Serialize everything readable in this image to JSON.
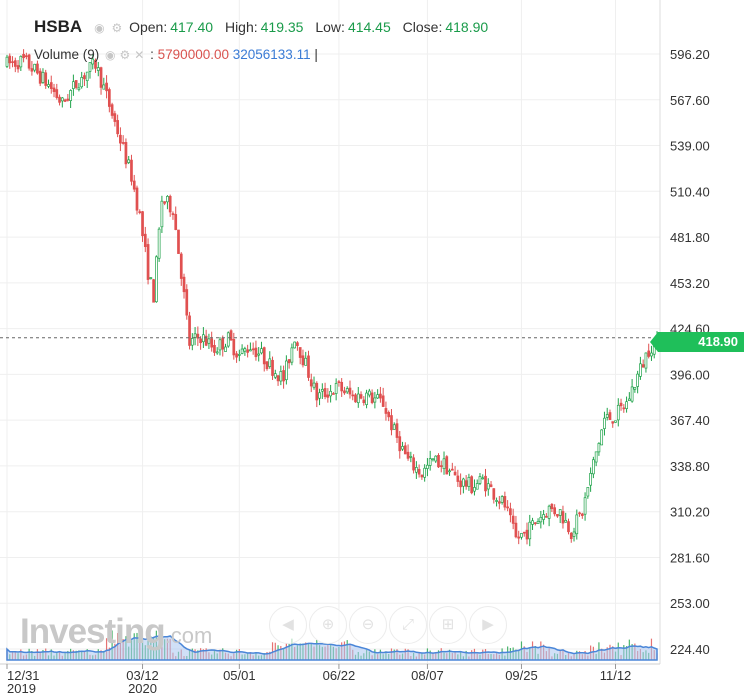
{
  "header": {
    "symbol": "HSBA",
    "open_label": "Open:",
    "open": "417.40",
    "high_label": "High:",
    "high": "419.35",
    "low_label": "Low:",
    "low": "414.45",
    "close_label": "Close:",
    "close": "418.90",
    "volume_label": "Volume (9)",
    "volume_sep": ":",
    "volume_value": "5790000.00",
    "volume_ma": "32056133.11",
    "volume_end": "|"
  },
  "last_price_badge": "418.90",
  "watermark": {
    "brand": "Investing",
    "suffix": ".com"
  },
  "colors": {
    "up": "#1fa34a",
    "down": "#e05050",
    "accent": "#1fbf5a",
    "volume_area": "#7aa7e6"
  },
  "icons": [
    "eye-icon",
    "gear-icon",
    "close-icon",
    "arrow-left-icon",
    "zoom-in-icon",
    "zoom-out-icon",
    "fit-icon",
    "arrow-right-icon"
  ],
  "chart_data": {
    "type": "candlestick",
    "title": "HSBA",
    "xlabel": "",
    "ylabel": "",
    "ylim": [
      210,
      610
    ],
    "x_ticks": [
      {
        "label": "12/31",
        "sub": "2019",
        "i": 0
      },
      {
        "label": "03/12",
        "sub": "2020",
        "i": 49
      },
      {
        "label": "05/01",
        "sub": "",
        "i": 84
      },
      {
        "label": "06/22",
        "sub": "",
        "i": 120
      },
      {
        "label": "08/07",
        "sub": "",
        "i": 152
      },
      {
        "label": "09/25",
        "sub": "",
        "i": 186
      },
      {
        "label": "11/12",
        "sub": "",
        "i": 220
      }
    ],
    "y_ticks": [
      596.2,
      567.6,
      539.0,
      510.4,
      481.8,
      453.2,
      424.6,
      396.0,
      367.4,
      338.8,
      310.2,
      281.6,
      253.0,
      224.4
    ],
    "last_price": 418.9,
    "anchors": [
      [
        0,
        590
      ],
      [
        6,
        592
      ],
      [
        10,
        586
      ],
      [
        16,
        575
      ],
      [
        20,
        565
      ],
      [
        26,
        580
      ],
      [
        32,
        590
      ],
      [
        35,
        575
      ],
      [
        40,
        548
      ],
      [
        45,
        520
      ],
      [
        48,
        495
      ],
      [
        51,
        460
      ],
      [
        53,
        445
      ],
      [
        56,
        505
      ],
      [
        60,
        500
      ],
      [
        63,
        460
      ],
      [
        66,
        415
      ],
      [
        70,
        420
      ],
      [
        75,
        412
      ],
      [
        80,
        418
      ],
      [
        84,
        408
      ],
      [
        88,
        414
      ],
      [
        92,
        408
      ],
      [
        96,
        400
      ],
      [
        100,
        393
      ],
      [
        104,
        420
      ],
      [
        108,
        402
      ],
      [
        112,
        382
      ],
      [
        116,
        385
      ],
      [
        120,
        388
      ],
      [
        125,
        382
      ],
      [
        130,
        383
      ],
      [
        136,
        378
      ],
      [
        140,
        360
      ],
      [
        145,
        342
      ],
      [
        150,
        334
      ],
      [
        154,
        342
      ],
      [
        158,
        340
      ],
      [
        163,
        330
      ],
      [
        168,
        326
      ],
      [
        172,
        330
      ],
      [
        176,
        322
      ],
      [
        180,
        314
      ],
      [
        184,
        293
      ],
      [
        188,
        298
      ],
      [
        192,
        306
      ],
      [
        196,
        312
      ],
      [
        200,
        310
      ],
      [
        204,
        298
      ],
      [
        208,
        310
      ],
      [
        212,
        340
      ],
      [
        216,
        368
      ],
      [
        220,
        370
      ],
      [
        224,
        378
      ],
      [
        228,
        395
      ],
      [
        232,
        412
      ],
      [
        235,
        418
      ]
    ],
    "volume": {
      "scale_max": 60000000,
      "ma_period": 9,
      "last": 5790000
    }
  }
}
